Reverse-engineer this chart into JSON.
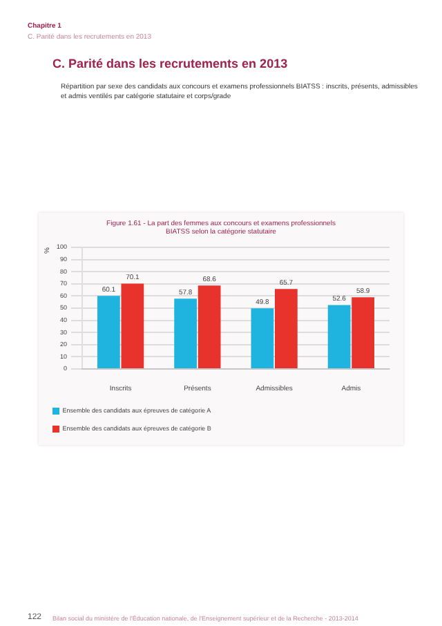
{
  "chart_data": {
    "type": "bar",
    "title": "Figure 1.61 - La part des femmes aux concours et examens professionnels BIATSS selon la catégorie statutaire",
    "ylabel": "%",
    "categories": [
      "Inscrits",
      "Présents",
      "Admissibles",
      "Admis"
    ],
    "series": [
      {
        "name": "Ensemble des candidats aux épreuves de catégorie A",
        "color": "#1fb3e0",
        "values": [
          60.1,
          57.8,
          49.8,
          52.6
        ]
      },
      {
        "name": "Ensemble des candidats aux épreuves de catégorie B",
        "color": "#e8322c",
        "values": [
          70.1,
          68.6,
          65.7,
          58.9
        ]
      }
    ],
    "ylim": [
      0,
      100
    ],
    "yticks": [
      0,
      10,
      20,
      30,
      40,
      50,
      60,
      70,
      80,
      90,
      100
    ],
    "grid": "y",
    "legend": "bottom",
    "data_labels": true,
    "annotations": [
      "Chapitre 1",
      "C. Parité dans les recrutements en 2013",
      "C. Parité dans les recrutements en 2013",
      "Répartition par sexe des candidats aux concours et examens professionnels BIATSS : inscrits, présents, admissibles et admis ventilés par catégorie statutaire et corps/grade",
      "122",
      "Bilan social du ministère de l'Éducation nationale, de l'Enseignement supérieur et de la Recherche - 2013-2014"
    ]
  }
}
